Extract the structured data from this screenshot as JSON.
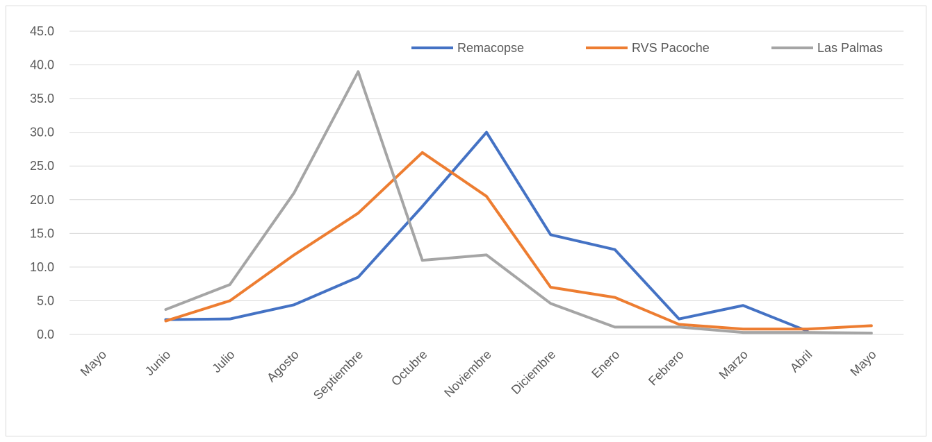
{
  "chart_data": {
    "type": "line",
    "title": "",
    "xlabel": "",
    "ylabel": "",
    "categories": [
      "Mayo",
      "Junio",
      "Julio",
      "Agosto",
      "Septiembre",
      "Octubre",
      "Noviembre",
      "Diciembre",
      "Enero",
      "Febrero",
      "Marzo",
      "Abril",
      "Mayo"
    ],
    "ylim": [
      0,
      45
    ],
    "yticks": [
      "0.0",
      "5.0",
      "10.0",
      "15.0",
      "20.0",
      "25.0",
      "30.0",
      "35.0",
      "40.0",
      "45.0"
    ],
    "grid": true,
    "legend_position": "top-right",
    "series": [
      {
        "name": "Remacopse",
        "color": "#4472c4",
        "values": [
          null,
          2.2,
          2.3,
          4.4,
          8.5,
          19.0,
          30.0,
          14.8,
          12.6,
          2.3,
          4.3,
          0.5,
          null
        ]
      },
      {
        "name": "RVS Pacoche",
        "color": "#ed7d31",
        "values": [
          null,
          2.0,
          5.0,
          11.8,
          18.0,
          27.0,
          20.5,
          7.0,
          5.5,
          1.5,
          0.8,
          0.8,
          1.3
        ]
      },
      {
        "name": "Las Palmas",
        "color": "#a5a5a5",
        "values": [
          null,
          3.7,
          7.4,
          21.0,
          39.0,
          11.0,
          11.8,
          4.6,
          1.1,
          1.1,
          0.3,
          0.3,
          0.2
        ]
      }
    ]
  }
}
